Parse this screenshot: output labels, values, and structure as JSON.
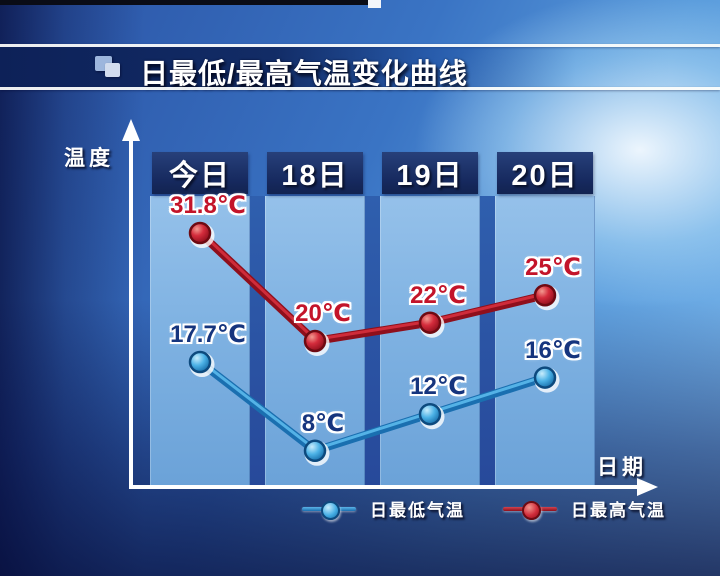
{
  "title_bar": {
    "title": "日最低/最高气温变化曲线"
  },
  "axes": {
    "y_label": "温度",
    "x_label": "日期"
  },
  "chart_data": {
    "type": "line",
    "categories": [
      "今日",
      "18日",
      "19日",
      "20日"
    ],
    "series": [
      {
        "name": "日最低气温",
        "role": "min",
        "color": "#2f8fd2",
        "values": [
          17.7,
          8,
          12,
          16
        ],
        "labels": [
          "17.7℃",
          "8℃",
          "12℃",
          "16℃"
        ]
      },
      {
        "name": "日最高气温",
        "role": "max",
        "color": "#c3142a",
        "values": [
          31.8,
          20,
          22,
          25
        ],
        "labels": [
          "31.8℃",
          "20℃",
          "22℃",
          "25℃"
        ]
      }
    ],
    "ylabel": "温度",
    "xlabel": "日期",
    "legend_position": "bottom",
    "grid": false
  },
  "colors": {
    "max_label": "#c3142a",
    "min_label": "#16357e",
    "column_header_bg": "#16295e",
    "column_body": "#7fb2e2",
    "axis": "#ffffff",
    "background_dark": "#122a66",
    "background_light": "#7cb8ec"
  }
}
